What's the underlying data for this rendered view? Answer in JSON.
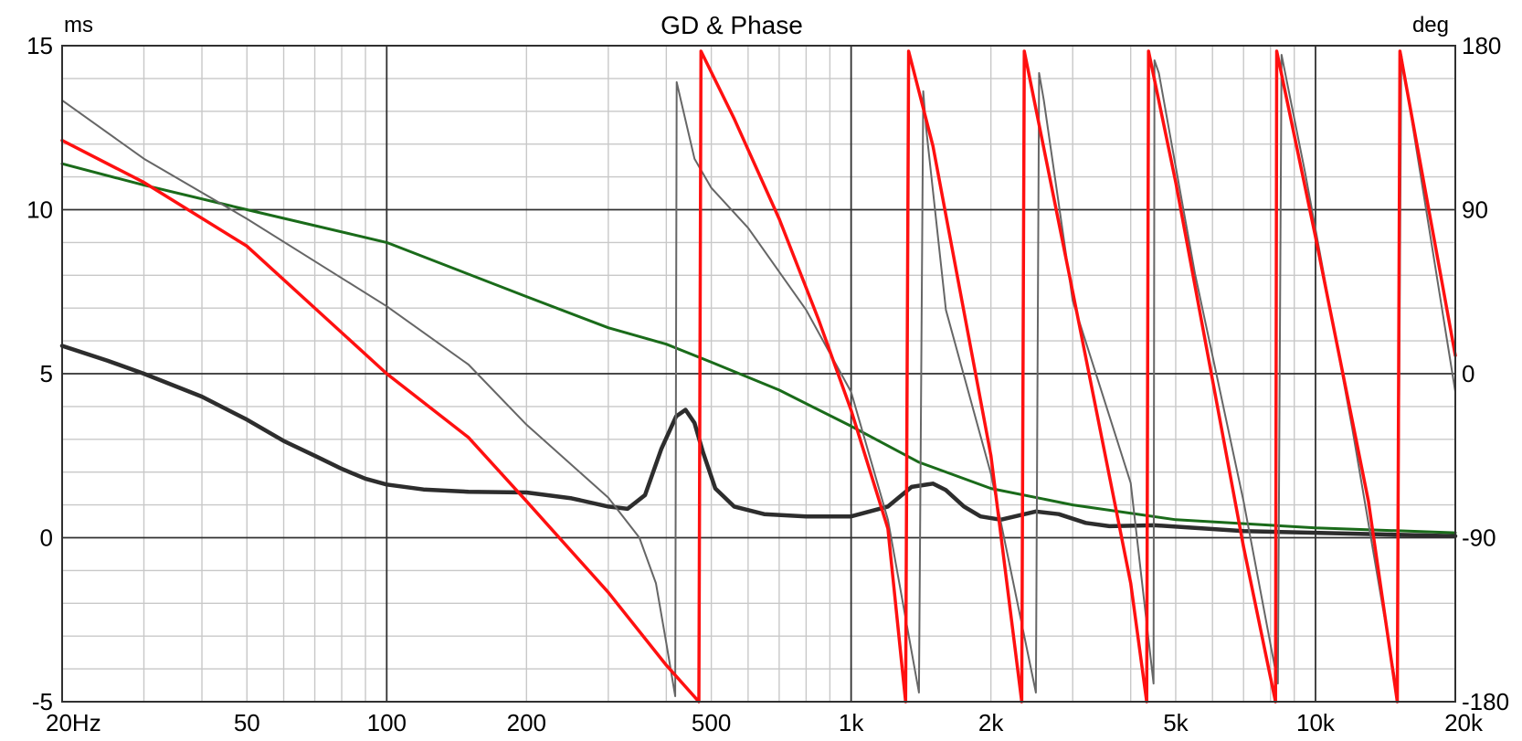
{
  "chart_data": {
    "type": "line",
    "title": "GD & Phase",
    "x_scale": "log",
    "xlim": [
      20,
      20000
    ],
    "ylim_left": [
      -5,
      15
    ],
    "ylim_right": [
      -180,
      180
    ],
    "left_unit": "ms",
    "right_unit": "deg",
    "grid": true,
    "x_ticks": [
      {
        "value": 20,
        "label": "20Hz"
      },
      {
        "value": 50,
        "label": "50"
      },
      {
        "value": 100,
        "label": "100"
      },
      {
        "value": 200,
        "label": "200"
      },
      {
        "value": 500,
        "label": "500"
      },
      {
        "value": 1000,
        "label": "1k"
      },
      {
        "value": 2000,
        "label": "2k"
      },
      {
        "value": 5000,
        "label": "5k"
      },
      {
        "value": 10000,
        "label": "10k"
      },
      {
        "value": 20000,
        "label": "20k"
      }
    ],
    "y_left_ticks": [
      {
        "value": 15,
        "label": "15"
      },
      {
        "value": 10,
        "label": "10"
      },
      {
        "value": 5,
        "label": "5"
      },
      {
        "value": 0,
        "label": "0"
      },
      {
        "value": -5,
        "label": "-5"
      }
    ],
    "y_right_ticks": [
      {
        "value": 180,
        "label": "180"
      },
      {
        "value": 90,
        "label": "90"
      },
      {
        "value": 0,
        "label": "0"
      },
      {
        "value": -90,
        "label": "-90"
      },
      {
        "value": -180,
        "label": "-180"
      }
    ],
    "series": [
      {
        "color": "#2d2d2d",
        "width": 4.5,
        "axis": "left",
        "points": [
          [
            20,
            5.85
          ],
          [
            25,
            5.4
          ],
          [
            30,
            5.0
          ],
          [
            40,
            4.3
          ],
          [
            50,
            3.6
          ],
          [
            60,
            2.95
          ],
          [
            70,
            2.5
          ],
          [
            80,
            2.1
          ],
          [
            90,
            1.8
          ],
          [
            100,
            1.62
          ],
          [
            120,
            1.47
          ],
          [
            150,
            1.4
          ],
          [
            200,
            1.38
          ],
          [
            250,
            1.2
          ],
          [
            300,
            0.95
          ],
          [
            330,
            0.88
          ],
          [
            360,
            1.3
          ],
          [
            390,
            2.7
          ],
          [
            420,
            3.7
          ],
          [
            440,
            3.9
          ],
          [
            460,
            3.5
          ],
          [
            480,
            2.6
          ],
          [
            510,
            1.5
          ],
          [
            560,
            0.95
          ],
          [
            650,
            0.72
          ],
          [
            800,
            0.65
          ],
          [
            1000,
            0.65
          ],
          [
            1200,
            0.95
          ],
          [
            1350,
            1.55
          ],
          [
            1500,
            1.65
          ],
          [
            1600,
            1.45
          ],
          [
            1750,
            0.95
          ],
          [
            1900,
            0.65
          ],
          [
            2100,
            0.55
          ],
          [
            2500,
            0.8
          ],
          [
            2800,
            0.72
          ],
          [
            3200,
            0.45
          ],
          [
            3600,
            0.35
          ],
          [
            4500,
            0.38
          ],
          [
            5500,
            0.3
          ],
          [
            7000,
            0.2
          ],
          [
            10000,
            0.15
          ],
          [
            20000,
            0.05
          ]
        ]
      },
      {
        "color": "#1a6b1a",
        "width": 3,
        "axis": "left",
        "points": [
          [
            20,
            11.4
          ],
          [
            30,
            10.75
          ],
          [
            50,
            10.0
          ],
          [
            100,
            9.0
          ],
          [
            200,
            7.35
          ],
          [
            300,
            6.4
          ],
          [
            400,
            5.9
          ],
          [
            500,
            5.35
          ],
          [
            700,
            4.5
          ],
          [
            1000,
            3.4
          ],
          [
            1400,
            2.3
          ],
          [
            2000,
            1.5
          ],
          [
            3000,
            1.0
          ],
          [
            5000,
            0.55
          ],
          [
            10000,
            0.3
          ],
          [
            20000,
            0.15
          ]
        ]
      },
      {
        "color": "#666666",
        "width": 2,
        "axis": "right",
        "points": [
          [
            20,
            150
          ],
          [
            30,
            118
          ],
          [
            50,
            85
          ],
          [
            100,
            37
          ],
          [
            150,
            5
          ],
          [
            200,
            -28
          ],
          [
            300,
            -68
          ],
          [
            350,
            -90
          ],
          [
            380,
            -115
          ],
          [
            400,
            -148
          ],
          [
            418,
            -177
          ],
          [
            421,
            160
          ],
          [
            430,
            150
          ],
          [
            460,
            118
          ],
          [
            500,
            102
          ],
          [
            600,
            80
          ],
          [
            800,
            35
          ],
          [
            1000,
            -10
          ],
          [
            1200,
            -80
          ],
          [
            1400,
            -175
          ],
          [
            1430,
            155
          ],
          [
            1450,
            135
          ],
          [
            1600,
            35
          ],
          [
            2000,
            -55
          ],
          [
            2500,
            -175
          ],
          [
            2540,
            165
          ],
          [
            2600,
            150
          ],
          [
            3000,
            40
          ],
          [
            4000,
            -60
          ],
          [
            4480,
            -170
          ],
          [
            4500,
            172
          ],
          [
            4600,
            165
          ],
          [
            5500,
            55
          ],
          [
            7000,
            -70
          ],
          [
            8300,
            -170
          ],
          [
            8450,
            175
          ],
          [
            9500,
            110
          ],
          [
            12000,
            -30
          ],
          [
            15000,
            -175
          ],
          [
            15300,
            175
          ],
          [
            20000,
            -10
          ]
        ]
      },
      {
        "color": "#ff1010",
        "width": 3.5,
        "axis": "right",
        "points": [
          [
            20,
            128
          ],
          [
            30,
            105
          ],
          [
            50,
            70
          ],
          [
            100,
            0
          ],
          [
            150,
            -35
          ],
          [
            200,
            -70
          ],
          [
            300,
            -120
          ],
          [
            400,
            -160
          ],
          [
            470,
            -180
          ],
          [
            475,
            177
          ],
          [
            560,
            140
          ],
          [
            700,
            85
          ],
          [
            850,
            30
          ],
          [
            1000,
            -20
          ],
          [
            1200,
            -85
          ],
          [
            1310,
            -180
          ],
          [
            1330,
            177
          ],
          [
            1500,
            125
          ],
          [
            2000,
            -45
          ],
          [
            2330,
            -180
          ],
          [
            2360,
            177
          ],
          [
            3000,
            45
          ],
          [
            4000,
            -115
          ],
          [
            4330,
            -180
          ],
          [
            4370,
            177
          ],
          [
            5000,
            105
          ],
          [
            7000,
            -95
          ],
          [
            8200,
            -180
          ],
          [
            8250,
            177
          ],
          [
            10000,
            75
          ],
          [
            13000,
            -70
          ],
          [
            15000,
            -180
          ],
          [
            15200,
            177
          ],
          [
            20000,
            10
          ]
        ]
      }
    ]
  }
}
